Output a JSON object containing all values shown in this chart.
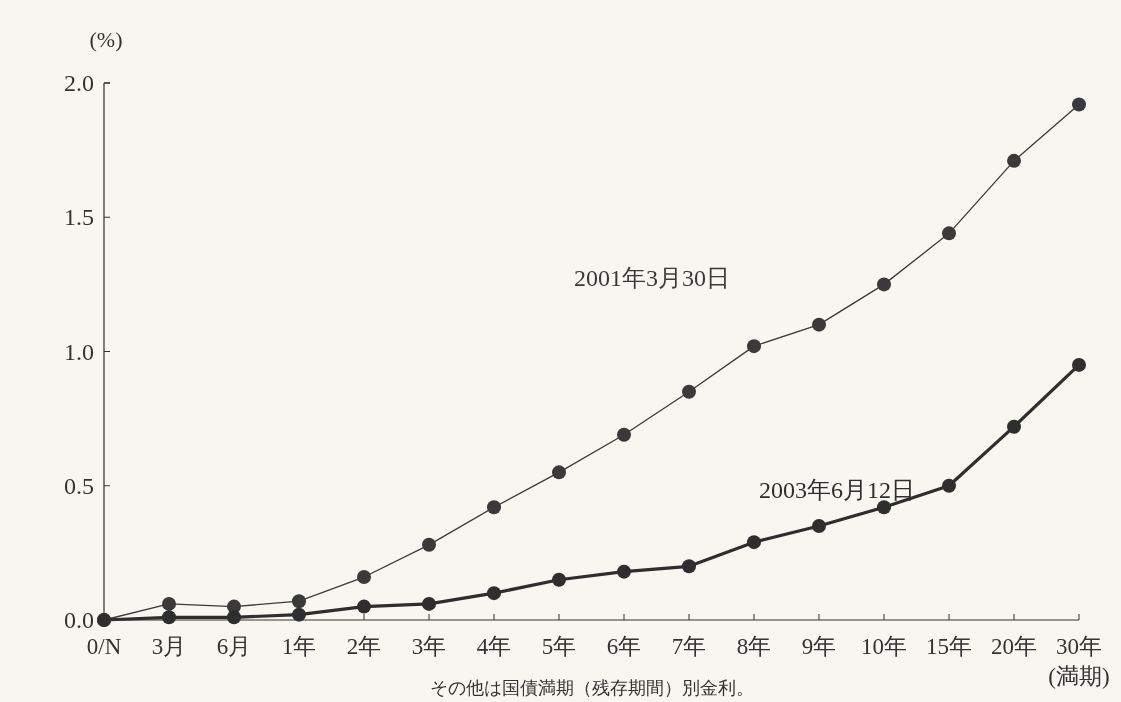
{
  "chart_data": {
    "type": "line",
    "ylabel": "(%)",
    "categories": [
      "0/N",
      "3月",
      "6月",
      "1年",
      "2年",
      "3年",
      "4年",
      "5年",
      "6年",
      "7年",
      "8年",
      "9年",
      "10年",
      "15年",
      "20年",
      "30年\n(満期)"
    ],
    "series": [
      {
        "name": "2001年3月30日",
        "color": "#3a3a3a",
        "values": [
          0,
          0.06,
          0.05,
          0.07,
          0.16,
          0.28,
          0.42,
          0.55,
          0.69,
          0.85,
          1.02,
          1.1,
          1.25,
          1.44,
          1.71,
          1.92
        ]
      },
      {
        "name": "2003年6月12日",
        "color": "#2e2e2e",
        "values": [
          0,
          0.01,
          0.01,
          0.02,
          0.05,
          0.06,
          0.1,
          0.15,
          0.18,
          0.2,
          0.29,
          0.35,
          0.42,
          0.5,
          0.72,
          0.95
        ]
      }
    ],
    "ylim": [
      0,
      2.0
    ],
    "yticks": [
      {
        "value": 0,
        "label": "0.0"
      },
      {
        "value": 0.5,
        "label": "0.5"
      },
      {
        "value": 1.0,
        "label": "1.0"
      },
      {
        "value": 1.5,
        "label": "1.5"
      },
      {
        "value": 2.0,
        "label": "2.0"
      }
    ],
    "marker": "circle",
    "line_style": "solid",
    "grid": false,
    "annotations": [
      "その他は国債満期（残存期間）別金利。"
    ]
  }
}
